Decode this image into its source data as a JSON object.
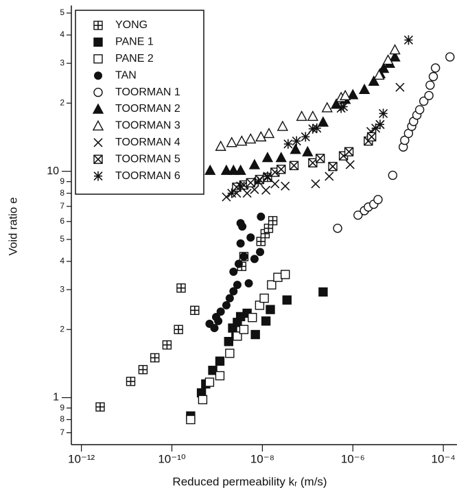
{
  "chart_data": {
    "type": "scatter",
    "x_label": "Reduced permeability kᵣ (m/s)",
    "y_label": "Void ratio e",
    "xlog": true,
    "ylog": true,
    "xlim": [
      6e-13,
      0.0002
    ],
    "ylim": [
      0.62,
      54
    ],
    "xticks": [
      {
        "value": 1e-12,
        "label": "10⁻¹²"
      },
      {
        "value": 1e-10,
        "label": "10⁻¹⁰"
      },
      {
        "value": 1e-08,
        "label": "10⁻⁸"
      },
      {
        "value": 1e-06,
        "label": "10⁻⁶"
      },
      {
        "value": 0.0001,
        "label": "10⁻⁴"
      }
    ],
    "yticks": [
      {
        "value": 0.7,
        "label": "7"
      },
      {
        "value": 0.8,
        "label": "8"
      },
      {
        "value": 0.9,
        "label": "9"
      },
      1,
      2,
      3,
      4,
      5,
      6,
      7,
      8,
      9,
      10,
      {
        "value": 20,
        "label": "2"
      },
      {
        "value": 30,
        "label": "3"
      },
      {
        "value": 40,
        "label": "4"
      },
      {
        "value": 50,
        "label": "5"
      }
    ],
    "legend": "top-left",
    "series": [
      {
        "name": "YONG",
        "marker": "square-plus",
        "color": "#111",
        "x": [
          2.6e-12,
          1.23e-11,
          2.3e-11,
          4.2e-11,
          7.8e-11,
          1.4e-10,
          1.6e-10,
          3.2e-10,
          3.5e-09,
          3.9e-09,
          9.3e-09,
          1.15e-08,
          1.37e-08,
          1.7e-08
        ],
        "values": [
          0.91,
          1.18,
          1.33,
          1.5,
          1.71,
          2.0,
          3.05,
          2.43,
          3.8,
          4.2,
          4.9,
          5.3,
          5.6,
          6.05
        ]
      },
      {
        "name": "PANE 1",
        "marker": "square-filled",
        "color": "#111",
        "x": [
          2.6e-10,
          4.5e-10,
          5.6e-10,
          8e-10,
          1.15e-09,
          1.8e-09,
          2.2e-09,
          2.6e-09,
          2.8e-09,
          3.3e-09,
          4.6e-09,
          7e-09,
          1.2e-08,
          1.5e-08,
          3.5e-08,
          2.2e-07
        ],
        "values": [
          0.83,
          1.05,
          1.15,
          1.32,
          1.45,
          1.77,
          2.03,
          1.87,
          2.15,
          2.28,
          2.36,
          1.9,
          2.18,
          2.45,
          2.7,
          2.93
        ]
      },
      {
        "name": "PANE 2",
        "marker": "square-open",
        "color": "#111",
        "x": [
          2.6e-10,
          4.8e-10,
          6.8e-10,
          1.15e-09,
          1.9e-09,
          2.8e-09,
          3.9e-09,
          6e-09,
          8.7e-09,
          1.1e-08,
          1.6e-08,
          2.2e-08,
          3.2e-08
        ],
        "values": [
          0.8,
          0.98,
          1.17,
          1.25,
          1.57,
          1.87,
          2.0,
          2.26,
          2.56,
          2.75,
          3.15,
          3.4,
          3.5
        ]
      },
      {
        "name": "TAN",
        "marker": "circle-filled",
        "color": "#111",
        "x": [
          6.8e-10,
          8.7e-10,
          9.5e-10,
          1.06e-09,
          1.2e-09,
          1.6e-09,
          1.9e-09,
          2.3e-09,
          2.8e-09,
          2.3e-09,
          3e-09,
          3.9e-09,
          3.3e-09,
          3.6e-09,
          3.3e-09,
          5.5e-09,
          6.7e-09,
          8.9e-09,
          9.3e-09,
          5e-09
        ],
        "values": [
          2.12,
          2.03,
          2.27,
          2.18,
          2.4,
          2.56,
          2.75,
          2.95,
          3.15,
          3.6,
          3.9,
          4.2,
          4.8,
          5.7,
          5.9,
          5.1,
          4.1,
          4.4,
          6.3,
          3.2
        ]
      },
      {
        "name": "TOORMAN 1",
        "marker": "circle-open",
        "color": "#111",
        "x": [
          4.6e-07,
          1.3e-06,
          1.8e-06,
          2.2e-06,
          2.9e-06,
          3.6e-06,
          7.6e-06,
          1.3e-05,
          1.4e-05,
          1.7e-05,
          2e-05,
          2.2e-05,
          2.6e-05,
          3e-05,
          3.7e-05,
          4.8e-05,
          5.1e-05,
          6e-05,
          6.7e-05,
          0.00014
        ],
        "values": [
          5.6,
          6.4,
          6.7,
          6.95,
          7.15,
          7.5,
          9.6,
          12.8,
          13.7,
          14.7,
          15.8,
          16.6,
          17.7,
          18.7,
          20.4,
          21.6,
          24,
          26.2,
          28.6,
          32
        ]
      },
      {
        "name": "TOORMAN 2",
        "marker": "triangle-filled",
        "color": "#111",
        "x": [
          2.5e-10,
          7e-10,
          1.6e-09,
          2.3e-09,
          3.3e-09,
          6.7e-09,
          1.3e-08,
          2.6e-08,
          5.4e-08,
          1e-07,
          2.2e-07,
          4.3e-07,
          6.8e-07,
          1e-06,
          1.8e-06,
          2.9e-06,
          4e-06,
          4.8e-06,
          6.5e-06,
          8.5e-06
        ],
        "values": [
          9.9,
          10.1,
          10.1,
          10.1,
          10.1,
          10.7,
          11.5,
          11.5,
          12.5,
          12.2,
          16.5,
          19.8,
          20.8,
          21.8,
          23,
          25,
          27,
          28.5,
          30,
          32
        ]
      },
      {
        "name": "TOORMAN 3",
        "marker": "triangle-open",
        "color": "#111",
        "x": [
          1.2e-09,
          2.1e-09,
          3.5e-09,
          5.5e-09,
          9.3e-09,
          1.4e-08,
          2.8e-08,
          7.4e-08,
          1.3e-07,
          2.7e-07,
          5.5e-07,
          6.8e-07,
          3.8e-06,
          6e-06,
          8.5e-06
        ],
        "values": [
          12.9,
          13.4,
          13.6,
          13.9,
          14.2,
          14.7,
          15.8,
          17.5,
          17.5,
          19.1,
          21.2,
          21.6,
          26.6,
          31,
          34.4
        ]
      },
      {
        "name": "TOORMAN 4",
        "marker": "cross",
        "color": "#111",
        "x": [
          1.6e-09,
          2.7e-09,
          4.6e-09,
          6.7e-09,
          1.2e-08,
          1.9e-08,
          3.2e-08,
          1.5e-07,
          3e-07,
          8.7e-07,
          2.2e-06,
          2.5e-06,
          4e-06,
          1.1e-05
        ],
        "values": [
          7.7,
          8,
          8,
          8.3,
          8.25,
          8.8,
          8.6,
          8.8,
          9.5,
          10.7,
          13.6,
          15,
          16.1,
          23.5
        ]
      },
      {
        "name": "TOORMAN 5",
        "marker": "square-cross",
        "color": "#111",
        "x": [
          2.7e-09,
          3.9e-09,
          5.5e-09,
          8.7e-09,
          1.3e-08,
          1.9e-08,
          2.6e-08,
          5e-08,
          1.3e-07,
          1.9e-07,
          3.6e-07,
          6.2e-07,
          8.2e-07,
          2.2e-06,
          2.6e-06
        ],
        "values": [
          8.5,
          8.7,
          8.9,
          9.2,
          9.4,
          9.9,
          10.2,
          10.6,
          10.9,
          11.4,
          10.5,
          11.7,
          12.2,
          13.6,
          14.2
        ]
      },
      {
        "name": "TOORMAN 6",
        "marker": "asterisk",
        "color": "#111",
        "x": [
          2.1e-09,
          3.3e-09,
          8.1e-09,
          1.3e-08,
          3.7e-08,
          5.7e-08,
          9e-08,
          1.3e-07,
          1.6e-07,
          5.5e-07,
          6.2e-07,
          3.2e-06,
          4e-06,
          4.7e-06,
          1.7e-05
        ],
        "values": [
          8,
          8.6,
          9,
          9.5,
          13.2,
          13.6,
          14.2,
          15.4,
          15.5,
          19,
          19.3,
          15.5,
          16.1,
          18,
          38
        ]
      }
    ]
  }
}
